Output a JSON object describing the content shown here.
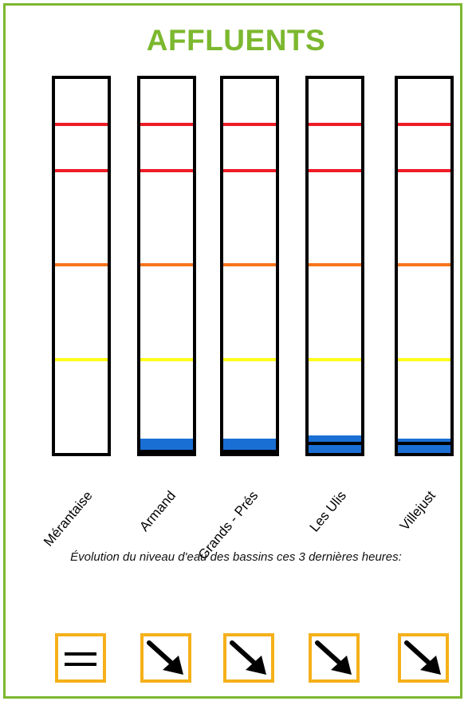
{
  "title": "AFFLUENTS",
  "colors": {
    "frame": "#7cb82f",
    "title": "#7cb82f",
    "threshold_red": "#ee1c25",
    "threshold_orange": "#f7741a",
    "threshold_yellow": "#ffff1a",
    "water": "#1a6fd4",
    "trend_border": "#f5b01a"
  },
  "caption": "Évolution du niveau d'eau des bassins ces 3 dernières heures:",
  "basins": [
    {
      "name": "Mérantaise",
      "water_level_fraction": 0.0,
      "secondary_water": false,
      "trend": "stable",
      "trend_icon": "equals-icon"
    },
    {
      "name": "Armand",
      "water_level_fraction": 0.03,
      "secondary_water": false,
      "trend": "falling",
      "trend_icon": "arrow-down-right-icon"
    },
    {
      "name": "Grands - Prés",
      "water_level_fraction": 0.03,
      "secondary_water": false,
      "trend": "falling",
      "trend_icon": "arrow-down-right-icon"
    },
    {
      "name": "Les Ulis",
      "water_level_fraction": 0.035,
      "secondary_water": true,
      "trend": "falling",
      "trend_icon": "arrow-down-right-icon"
    },
    {
      "name": "Villejust",
      "water_level_fraction": 0.025,
      "secondary_water": true,
      "trend": "falling",
      "trend_icon": "arrow-down-right-icon"
    }
  ]
}
